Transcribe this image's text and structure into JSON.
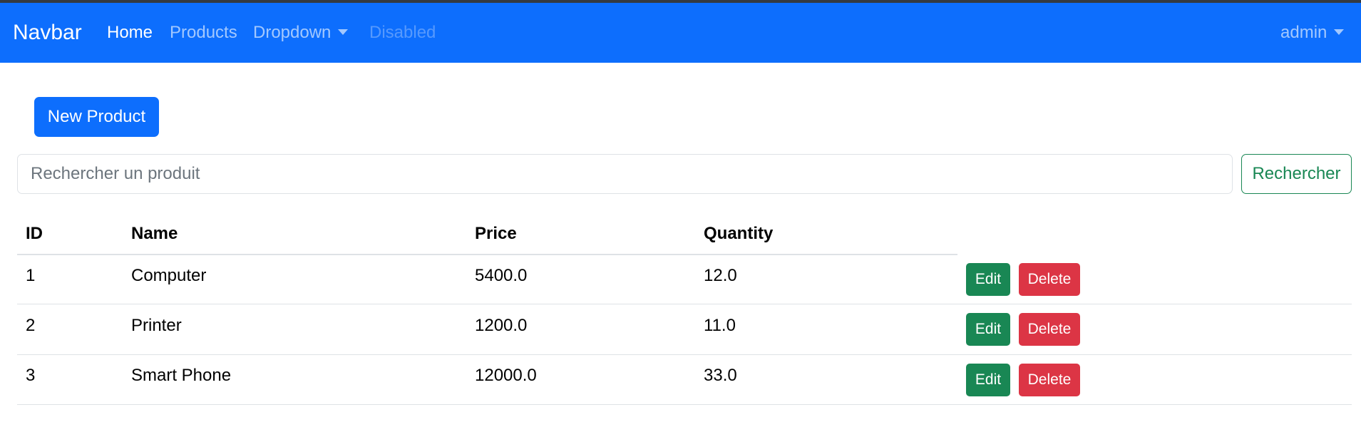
{
  "navbar": {
    "brand": "Navbar",
    "links": [
      {
        "label": "Home",
        "state": "active"
      },
      {
        "label": "Products",
        "state": "normal"
      },
      {
        "label": "Dropdown",
        "state": "dropdown"
      },
      {
        "label": "Disabled",
        "state": "disabled"
      }
    ],
    "user": "admin"
  },
  "toolbar": {
    "new_product_label": "New Product"
  },
  "search": {
    "placeholder": "Rechercher un produit",
    "value": "",
    "button_label": "Rechercher"
  },
  "table": {
    "headers": [
      "ID",
      "Name",
      "Price",
      "Quantity"
    ],
    "rows": [
      {
        "id": "1",
        "name": "Computer",
        "price": "5400.0",
        "quantity": "12.0"
      },
      {
        "id": "2",
        "name": "Printer",
        "price": "1200.0",
        "quantity": "11.0"
      },
      {
        "id": "3",
        "name": "Smart Phone",
        "price": "12000.0",
        "quantity": "33.0"
      }
    ],
    "edit_label": "Edit",
    "delete_label": "Delete"
  },
  "colors": {
    "navbar_bg": "#0d6efd",
    "primary": "#0d6efd",
    "success": "#198754",
    "danger": "#dc3545"
  }
}
